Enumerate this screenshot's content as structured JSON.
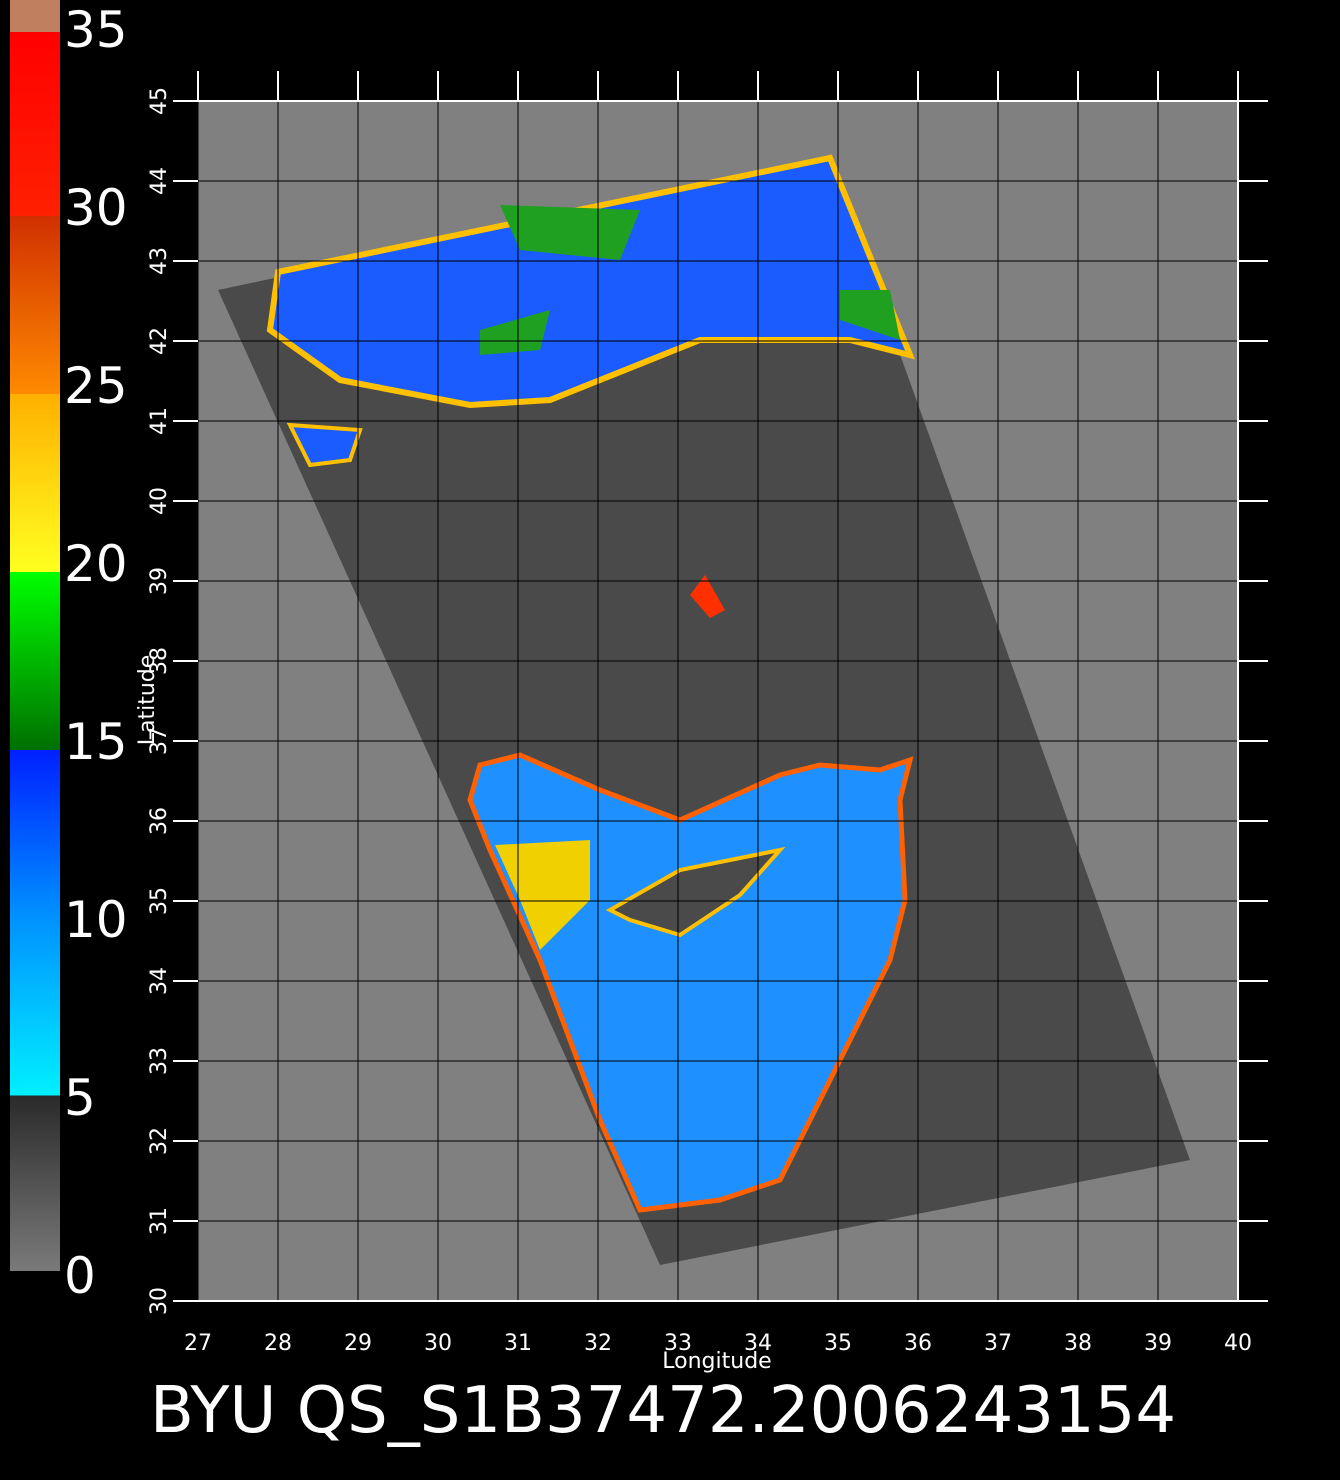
{
  "chart_data": {
    "type": "map",
    "title": "BYU QS_S1B37472.2006243154",
    "x_label": "Longitude",
    "y_label": "Latitude",
    "xlim": [
      27,
      40
    ],
    "ylim": [
      30,
      45
    ],
    "xticks": [
      27,
      28,
      29,
      30,
      31,
      32,
      33,
      34,
      35,
      36,
      37,
      38,
      39,
      40
    ],
    "yticks": [
      30,
      31,
      32,
      33,
      34,
      35,
      36,
      37,
      38,
      39,
      40,
      41,
      42,
      43,
      44,
      45
    ],
    "grid": true,
    "colorbar": {
      "lim": [
        0,
        35
      ],
      "ticks": [
        0,
        5,
        10,
        15,
        20,
        25,
        30,
        35
      ]
    }
  }
}
